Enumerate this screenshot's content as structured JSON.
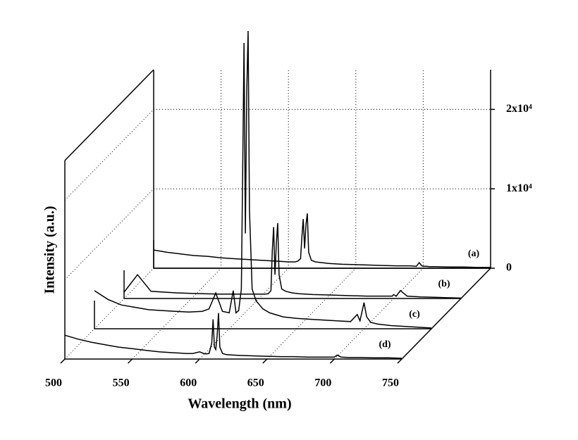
{
  "chart_data": {
    "type": "waterfall",
    "x_label": "Wavelength (nm)",
    "y_label": "Intensity (a.u.)",
    "xlim": [
      500,
      750
    ],
    "xticks": [
      500,
      550,
      600,
      650,
      700,
      750
    ],
    "ylim": [
      0,
      25000
    ],
    "yticks": [
      0,
      {
        "value": 10000,
        "label": "1x10⁴"
      },
      {
        "value": 20000,
        "label": "2x10⁴"
      }
    ],
    "grid": true,
    "x": [
      500,
      510,
      520,
      530,
      540,
      550,
      560,
      570,
      580,
      585,
      590,
      595,
      600,
      603,
      605,
      607,
      609,
      610,
      611,
      612,
      613,
      614,
      615,
      617,
      620,
      625,
      630,
      640,
      650,
      660,
      670,
      680,
      690,
      695,
      697,
      699,
      700,
      702,
      705,
      710,
      720,
      730,
      740,
      750
    ],
    "series": [
      {
        "name": "(a)",
        "color": "#000000",
        "values": [
          2300,
          2000,
          1800,
          1600,
          1500,
          1300,
          1200,
          1100,
          1000,
          950,
          900,
          850,
          800,
          800,
          800,
          900,
          1200,
          4000,
          6200,
          2500,
          5500,
          6900,
          2000,
          1000,
          800,
          700,
          600,
          500,
          450,
          400,
          350,
          300,
          300,
          250,
          700,
          300,
          250,
          250,
          200,
          200,
          150,
          150,
          100,
          100
        ]
      },
      {
        "name": "(b)",
        "color": "#000000",
        "values": [
          800,
          3000,
          900,
          800,
          700,
          650,
          600,
          550,
          550,
          550,
          550,
          550,
          550,
          550,
          550,
          600,
          1000,
          6000,
          9000,
          3000,
          7000,
          9500,
          3000,
          1200,
          900,
          700,
          600,
          500,
          450,
          400,
          350,
          300,
          300,
          300,
          300,
          300,
          500,
          300,
          1000,
          300,
          200,
          150,
          100,
          50
        ]
      },
      {
        "name": "(c)",
        "color": "#000000",
        "values": [
          4800,
          3700,
          3000,
          2700,
          2400,
          2300,
          2200,
          2100,
          2200,
          2500,
          4500,
          2200,
          2000,
          4800,
          2000,
          2300,
          5000,
          20000,
          36000,
          12000,
          30000,
          37500,
          15000,
          5000,
          3500,
          2500,
          2000,
          1500,
          1300,
          1200,
          1100,
          1000,
          900,
          1800,
          1000,
          2500,
          3300,
          1500,
          800,
          600,
          400,
          300,
          200,
          100
        ]
      },
      {
        "name": "(d)",
        "color": "#000000",
        "values": [
          3000,
          2500,
          2100,
          1800,
          1500,
          1300,
          1100,
          900,
          800,
          750,
          700,
          700,
          900,
          700,
          650,
          700,
          2000,
          5000,
          1500,
          1200,
          3000,
          5800,
          1500,
          700,
          550,
          500,
          450,
          400,
          350,
          300,
          300,
          250,
          250,
          250,
          250,
          250,
          250,
          500,
          250,
          200,
          200,
          150,
          150,
          100
        ]
      }
    ]
  }
}
